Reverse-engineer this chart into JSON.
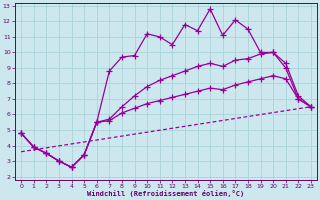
{
  "xlabel": "Windchill (Refroidissement éolien,°C)",
  "bg_color": "#cce8ee",
  "line_color": "#990099",
  "grid_color": "#aad4d8",
  "text_color": "#660066",
  "xlim": [
    -0.5,
    23.5
  ],
  "ylim": [
    1.8,
    13.2
  ],
  "xticks": [
    0,
    1,
    2,
    3,
    4,
    5,
    6,
    7,
    8,
    9,
    10,
    11,
    12,
    13,
    14,
    15,
    16,
    17,
    18,
    19,
    20,
    21,
    22,
    23
  ],
  "yticks": [
    2,
    3,
    4,
    5,
    6,
    7,
    8,
    9,
    10,
    11,
    12,
    13
  ],
  "line1_x": [
    0,
    1,
    2,
    3,
    4,
    5,
    6,
    7,
    8,
    9,
    10,
    11,
    12,
    13,
    14,
    15,
    16,
    17,
    18,
    19,
    20,
    21,
    22,
    23
  ],
  "line1_y": [
    4.8,
    3.9,
    3.5,
    3.0,
    2.6,
    3.4,
    5.5,
    8.8,
    9.7,
    9.8,
    11.2,
    11.0,
    10.5,
    11.8,
    11.4,
    12.8,
    11.1,
    12.1,
    11.5,
    10.0,
    10.0,
    9.0,
    7.0,
    6.5
  ],
  "line2_x": [
    0,
    1,
    2,
    3,
    4,
    5,
    6,
    7,
    8,
    9,
    10,
    11,
    12,
    13,
    14,
    15,
    16,
    17,
    18,
    19,
    20,
    21,
    22,
    23
  ],
  "line2_y": [
    4.8,
    3.9,
    3.5,
    3.0,
    2.6,
    3.4,
    5.5,
    5.7,
    6.5,
    7.2,
    7.8,
    8.2,
    8.5,
    8.8,
    9.1,
    9.3,
    9.1,
    9.5,
    9.6,
    9.9,
    10.0,
    9.3,
    7.2,
    6.5
  ],
  "line3_x": [
    0,
    1,
    2,
    3,
    4,
    5,
    6,
    7,
    8,
    9,
    10,
    11,
    12,
    13,
    14,
    15,
    16,
    17,
    18,
    19,
    20,
    21,
    22,
    23
  ],
  "line3_y": [
    4.8,
    3.9,
    3.5,
    3.0,
    2.6,
    3.4,
    5.5,
    5.6,
    6.1,
    6.4,
    6.7,
    6.9,
    7.1,
    7.3,
    7.5,
    7.7,
    7.6,
    7.9,
    8.1,
    8.3,
    8.5,
    8.3,
    7.0,
    6.5
  ],
  "line4_x": [
    0,
    23
  ],
  "line4_y": [
    3.6,
    6.5
  ]
}
